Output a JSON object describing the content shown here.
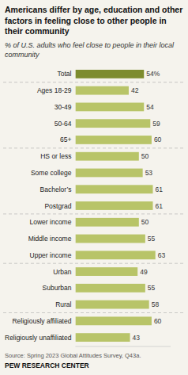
{
  "chart_data": {
    "type": "bar",
    "orientation": "horizontal",
    "title": "Americans differ by age, education and other factors in feeling close to other people in their community",
    "subtitle": "% of U.S. adults who feel close to people in their local community",
    "annotations": [
      "Source: Spring 2023 Global Attitudes Survey, Q43a.",
      "PEW RESEARCH CENTER"
    ],
    "categories": [
      "Total",
      "Ages 18-29",
      "30-49",
      "50-64",
      "65+",
      "HS or less",
      "Some college",
      "Bachelor’s",
      "Postgrad",
      "Lower income",
      "Middle income",
      "Upper income",
      "Urban",
      "Suburban",
      "Rural",
      "Religiously affiliated",
      "Religiously unaffiliated"
    ],
    "values": [
      54,
      42,
      54,
      59,
      60,
      50,
      53,
      61,
      61,
      50,
      55,
      63,
      49,
      55,
      58,
      60,
      43
    ],
    "value_labels": [
      "54%",
      "42",
      "54",
      "59",
      "60",
      "50",
      "53",
      "61",
      "61",
      "50",
      "55",
      "63",
      "49",
      "55",
      "58",
      "60",
      "43"
    ],
    "colors": [
      "#7d8c2e",
      "#b8c468",
      "#b8c468",
      "#b8c468",
      "#b8c468",
      "#b8c468",
      "#b8c468",
      "#b8c468",
      "#b8c468",
      "#b8c468",
      "#b8c468",
      "#b8c468",
      "#b8c468",
      "#b8c468",
      "#b8c468",
      "#b8c468",
      "#b8c468"
    ],
    "xlim": [
      0,
      75
    ],
    "grid": false,
    "data_labels": true,
    "tick_labels": "y"
  }
}
